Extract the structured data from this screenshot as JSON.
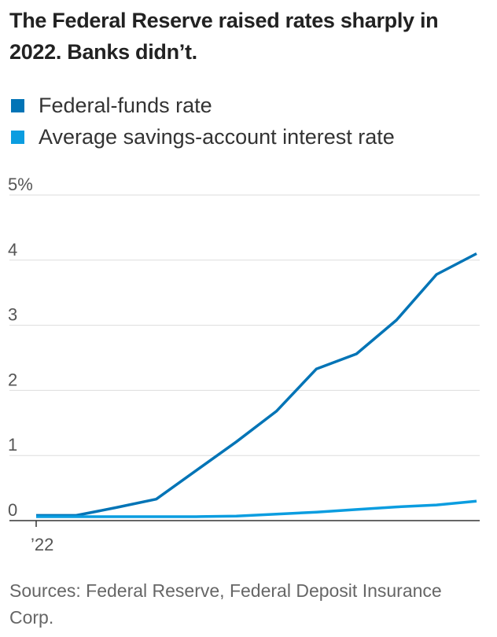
{
  "title": "The Federal Reserve raised rates sharply in 2022. Banks didn’t.",
  "source": "Sources: Federal Reserve, Federal Deposit Insurance Corp.",
  "chart_data": {
    "type": "line",
    "legend_placement": "top-left",
    "grid": true,
    "ylim": [
      0,
      5
    ],
    "y_ticks": [
      {
        "value": 0,
        "label": "0"
      },
      {
        "value": 1,
        "label": "1"
      },
      {
        "value": 2,
        "label": "2"
      },
      {
        "value": 3,
        "label": "3"
      },
      {
        "value": 4,
        "label": "4"
      },
      {
        "value": 5,
        "label": "5%"
      }
    ],
    "x_ticks": [
      {
        "value": "2022-01",
        "label": "’22"
      }
    ],
    "series": [
      {
        "name": "Federal-funds rate",
        "color": "#0274b6",
        "points": [
          {
            "x": "2022-01",
            "y": 0.08
          },
          {
            "x": "2022-02",
            "y": 0.08
          },
          {
            "x": "2022-03",
            "y": 0.2
          },
          {
            "x": "2022-04",
            "y": 0.33
          },
          {
            "x": "2022-05",
            "y": 0.77
          },
          {
            "x": "2022-06",
            "y": 1.21
          },
          {
            "x": "2022-07",
            "y": 1.68
          },
          {
            "x": "2022-08",
            "y": 2.33
          },
          {
            "x": "2022-09",
            "y": 2.56
          },
          {
            "x": "2022-10",
            "y": 3.08
          },
          {
            "x": "2022-11",
            "y": 3.78
          },
          {
            "x": "2022-12",
            "y": 4.1
          }
        ]
      },
      {
        "name": "Average savings-account interest rate",
        "color": "#0b9de0",
        "points": [
          {
            "x": "2022-01",
            "y": 0.06
          },
          {
            "x": "2022-02",
            "y": 0.06
          },
          {
            "x": "2022-03",
            "y": 0.06
          },
          {
            "x": "2022-04",
            "y": 0.06
          },
          {
            "x": "2022-05",
            "y": 0.06
          },
          {
            "x": "2022-06",
            "y": 0.07
          },
          {
            "x": "2022-07",
            "y": 0.1
          },
          {
            "x": "2022-08",
            "y": 0.13
          },
          {
            "x": "2022-09",
            "y": 0.17
          },
          {
            "x": "2022-10",
            "y": 0.21
          },
          {
            "x": "2022-11",
            "y": 0.24
          },
          {
            "x": "2022-12",
            "y": 0.3
          }
        ]
      }
    ]
  }
}
